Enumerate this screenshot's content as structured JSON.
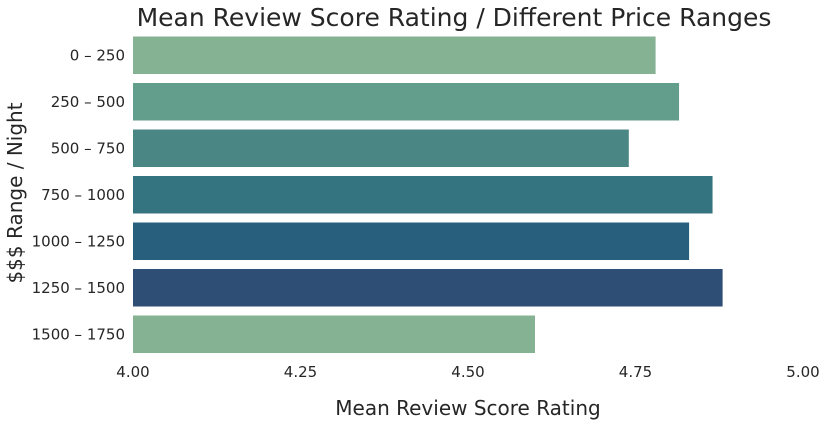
{
  "chart_data": {
    "type": "bar",
    "orientation": "horizontal",
    "title": "Mean Review Score Rating / Different Price Ranges",
    "xlabel": "Mean Review Score Rating",
    "ylabel": "$$$ Range / Night",
    "categories": [
      "0 – 250",
      "250 – 500",
      "500 – 750",
      "750 – 1000",
      "1000 – 1250",
      "1250 – 1500",
      "1500 – 1750"
    ],
    "values": [
      4.78,
      4.815,
      4.74,
      4.865,
      4.83,
      4.88,
      4.6
    ],
    "xlim": [
      4.0,
      5.0
    ],
    "xticks": [
      "4.00",
      "4.25",
      "4.50",
      "4.75",
      "5.00"
    ],
    "grid": false,
    "colors": [
      "#85b293",
      "#639e8c",
      "#4a8784",
      "#347480",
      "#285f7d",
      "#2f4e76",
      "#85b293"
    ]
  }
}
